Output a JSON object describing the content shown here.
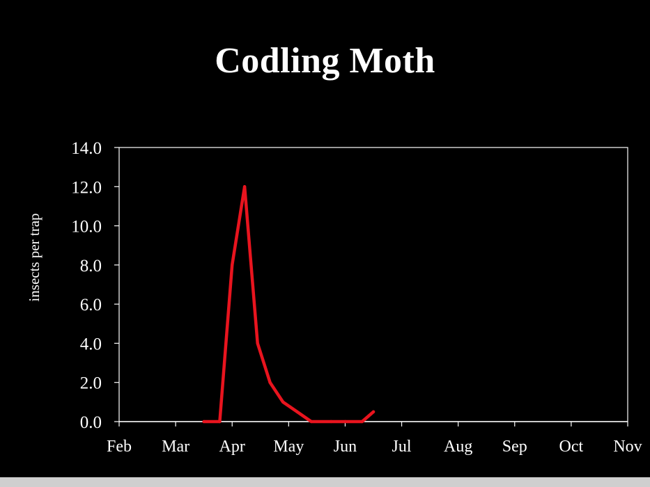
{
  "colors": {
    "background": "#000000",
    "foreground": "#ffffff",
    "series": "#e8141e",
    "footer": "#cfcfcf"
  },
  "chart_data": {
    "type": "line",
    "title": "Codling Moth",
    "xlabel": "",
    "ylabel": "insects per trap",
    "categories": [
      "Feb",
      "Mar",
      "Apr",
      "May",
      "Jun",
      "Jul",
      "Aug",
      "Sep",
      "Oct",
      "Nov"
    ],
    "ylim": [
      0,
      14
    ],
    "y_ticks": [
      "0.0",
      "2.0",
      "4.0",
      "6.0",
      "8.0",
      "10.0",
      "12.0",
      "14.0"
    ],
    "grid": false,
    "legend": "none",
    "series": [
      {
        "x": [
          1.5,
          1.78,
          2.0,
          2.22,
          2.45,
          2.67,
          2.9,
          3.15,
          3.4,
          3.75,
          4.0,
          4.3,
          4.5
        ],
        "values": [
          0.0,
          0.0,
          8.0,
          12.0,
          4.0,
          2.0,
          1.0,
          0.5,
          0.0,
          0.0,
          0.0,
          0.0,
          0.5
        ]
      }
    ]
  }
}
